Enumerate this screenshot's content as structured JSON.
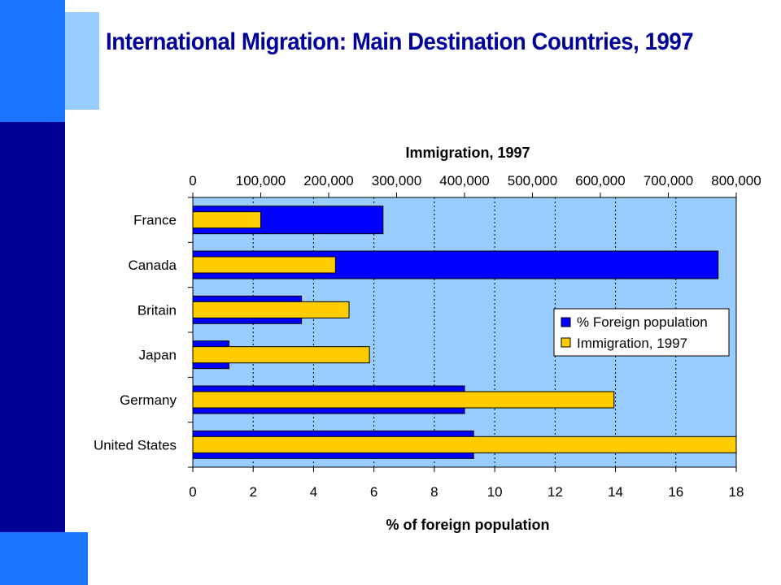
{
  "page": {
    "title": "International Migration: Main Destination Countries, 1997"
  },
  "colors": {
    "dark_blue": "#000099",
    "mid_blue": "#1a75ff",
    "light_blue": "#99ccff",
    "plot_bg": "#99ccff",
    "foreign_bar": "#0000ff",
    "immigration_bar": "#ffcc00"
  },
  "chart_data": {
    "type": "bar",
    "orientation": "horizontal",
    "categories": [
      "France",
      "Canada",
      "Britain",
      "Japan",
      "Germany",
      "United States"
    ],
    "series": [
      {
        "name": "% Foreign population",
        "axis": "bottom",
        "values": [
          6.3,
          17.4,
          3.6,
          1.2,
          9.0,
          9.3
        ]
      },
      {
        "name": "Immigration, 1997",
        "axis": "top",
        "values": [
          100000,
          210000,
          230000,
          260000,
          620000,
          800000
        ]
      }
    ],
    "top_axis": {
      "title": "Immigration, 1997",
      "range": [
        0,
        800000
      ],
      "ticks": [
        "0",
        "100,000",
        "200,000",
        "300,000",
        "400,000",
        "500,000",
        "600,000",
        "700,000",
        "800,000"
      ]
    },
    "bottom_axis": {
      "title": "% of foreign population",
      "range": [
        0,
        18
      ],
      "ticks": [
        "0",
        "2",
        "4",
        "6",
        "8",
        "10",
        "12",
        "14",
        "16",
        "18"
      ]
    },
    "grid": true,
    "legend_position": "right"
  }
}
